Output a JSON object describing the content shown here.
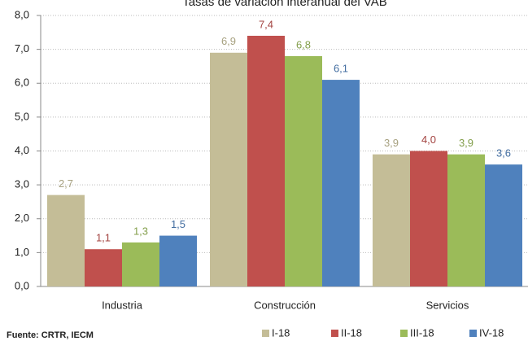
{
  "chart_data": {
    "type": "bar",
    "title": "Tasas de variación interanual del VAB",
    "source": "Fuente: CRTR, IECM",
    "categories": [
      "Industria",
      "Construcción",
      "Servicios"
    ],
    "series": [
      {
        "name": "I-18",
        "color": "#c4bd97",
        "values": [
          2.7,
          6.9,
          3.9
        ],
        "value_labels": [
          "2,7",
          "6,9",
          "3,9"
        ]
      },
      {
        "name": "II-18",
        "color": "#c0504d",
        "values": [
          1.1,
          7.4,
          4.0
        ],
        "value_labels": [
          "1,1",
          "7,4",
          "4,0"
        ]
      },
      {
        "name": "III-18",
        "color": "#9bbb59",
        "values": [
          1.3,
          6.8,
          3.9
        ],
        "value_labels": [
          "1,3",
          "6,8",
          "3,9"
        ]
      },
      {
        "name": "IV-18",
        "color": "#4f81bd",
        "values": [
          1.5,
          6.1,
          3.6
        ],
        "value_labels": [
          "1,5",
          "6,1",
          "3,6"
        ]
      }
    ],
    "ylim": [
      0,
      8
    ],
    "yticks": [
      {
        "value": 0,
        "label": "0,0"
      },
      {
        "value": 1,
        "label": "1,0"
      },
      {
        "value": 2,
        "label": "2,0"
      },
      {
        "value": 3,
        "label": "3,0"
      },
      {
        "value": 4,
        "label": "4,0"
      },
      {
        "value": 5,
        "label": "5,0"
      },
      {
        "value": 6,
        "label": "6,0"
      },
      {
        "value": 7,
        "label": "7,0"
      },
      {
        "value": 8,
        "label": "8,0"
      }
    ],
    "grid": true
  }
}
